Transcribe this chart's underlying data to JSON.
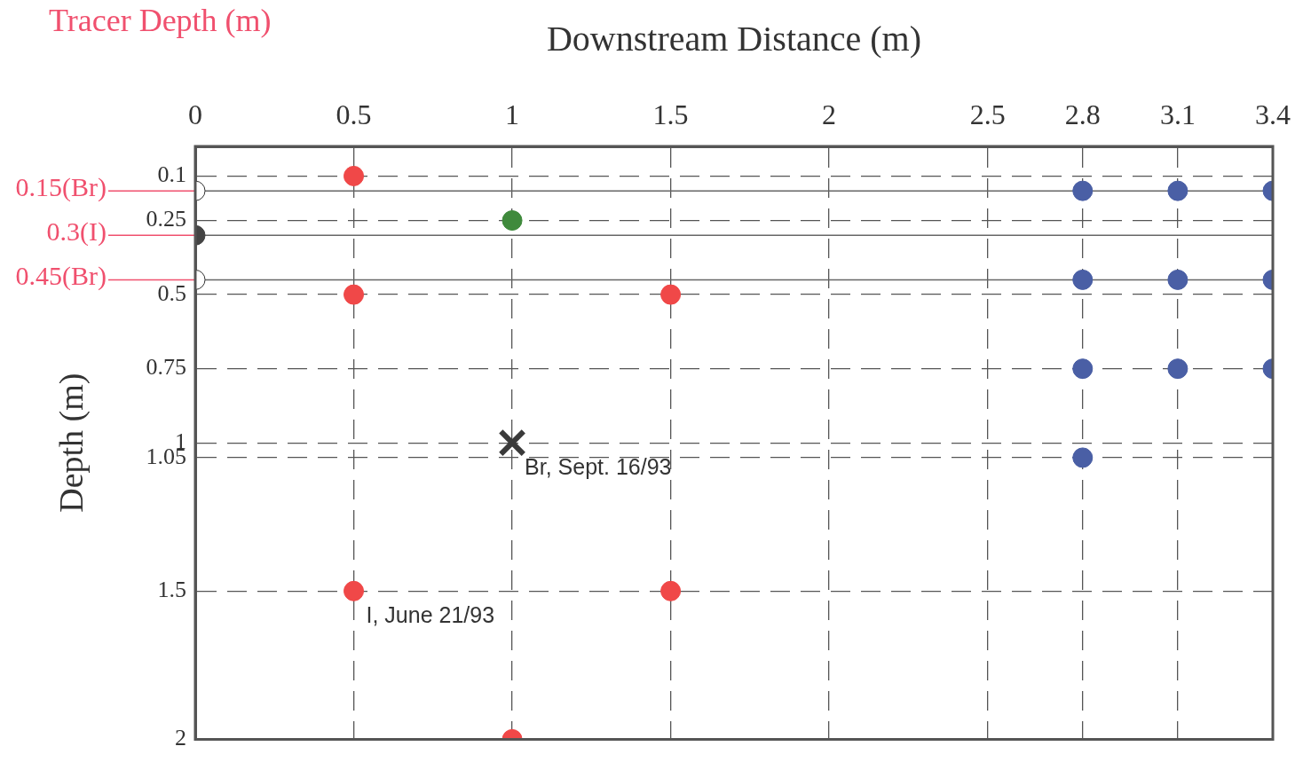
{
  "chart_data": {
    "type": "scatter",
    "xlabel": "Downstream Distance (m)",
    "ylabel": "Depth (m)",
    "xlim": [
      0,
      3.4
    ],
    "xticks": [
      0,
      0.5,
      1,
      1.5,
      2,
      2.5,
      2.8,
      3.1,
      3.4
    ],
    "ylim": [
      2,
      0
    ],
    "yticks": [
      0.1,
      0.25,
      0.5,
      0.75,
      1,
      1.05,
      1.5,
      2
    ],
    "grid": true,
    "legend": false,
    "marker": "circle",
    "series": [
      {
        "color": "#f04848",
        "x": [
          0.5,
          0.5,
          1.5,
          0.5,
          1.5,
          1
        ],
        "values": [
          0.1,
          0.5,
          0.5,
          1.5,
          1.5,
          2
        ]
      },
      {
        "color": "#3f8a3c",
        "x": [
          1
        ],
        "values": [
          0.25
        ]
      },
      {
        "color": "#444444",
        "x": [
          0
        ],
        "values": [
          0.3
        ]
      },
      {
        "color": "#ffffff",
        "x": [
          0,
          0
        ],
        "values": [
          0.15,
          0.45
        ]
      },
      {
        "color": "#4a5fa5",
        "x": [
          2.8,
          3.1,
          3.4,
          2.8,
          3.1,
          3.4,
          2.8,
          3.1,
          3.4,
          2.8
        ],
        "values": [
          0.15,
          0.15,
          0.15,
          0.45,
          0.45,
          0.45,
          0.75,
          0.75,
          0.75,
          1.05
        ]
      },
      {
        "color": "#3a3a3a",
        "marker": "cross",
        "x": [
          1
        ],
        "values": [
          1
        ]
      }
    ],
    "ref_lines": [
      {
        "axis": "y",
        "value": 0.15,
        "label": "0.15(Br)",
        "color": "#666666"
      },
      {
        "axis": "y",
        "value": 0.3,
        "label": "0.3(I)",
        "color": "#666666"
      },
      {
        "axis": "y",
        "value": 0.45,
        "label": "0.45(Br)",
        "color": "#666666"
      }
    ],
    "annotations": [
      "Tracer Depth (m)",
      {
        "text": "Br, Sept. 16/93",
        "x": 1,
        "y": 1
      },
      {
        "text": "I, June 21/93",
        "x": 0.5,
        "y": 1.5
      }
    ]
  }
}
